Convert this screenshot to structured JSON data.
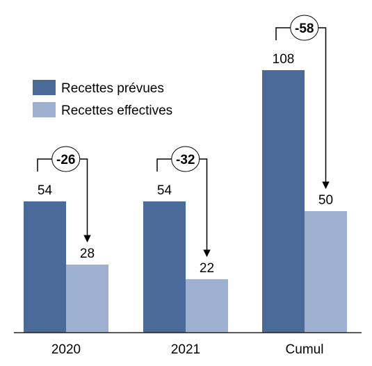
{
  "chart_data": {
    "type": "bar",
    "categories": [
      "2020",
      "2021",
      "Cumul"
    ],
    "series": [
      {
        "name": "Recettes prévues",
        "values": [
          54,
          54,
          108
        ],
        "color": "#4a6a9a"
      },
      {
        "name": "Recettes effectives",
        "values": [
          28,
          22,
          50
        ],
        "color": "#9db0cf"
      }
    ],
    "differences": [
      "-26",
      "-32",
      "-58"
    ],
    "data_labels": [
      [
        "54",
        "54",
        "108"
      ],
      [
        "28",
        "22",
        "50"
      ]
    ],
    "ylim": [
      0,
      120
    ],
    "grid": false,
    "legend": "top-left",
    "title": "",
    "xlabel": "",
    "ylabel": ""
  }
}
